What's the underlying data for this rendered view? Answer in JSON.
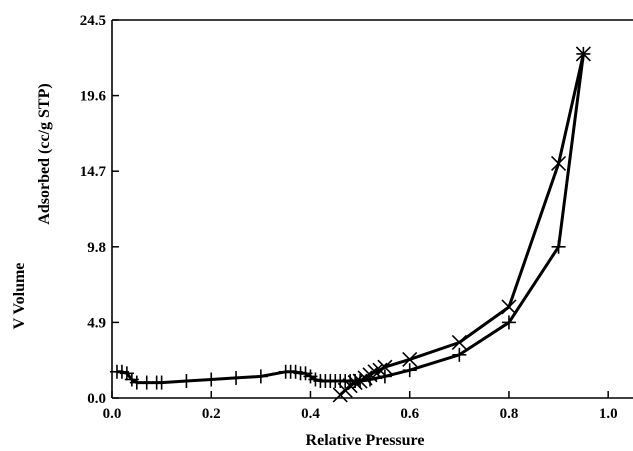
{
  "chart_data": {
    "type": "line",
    "title": "",
    "xlabel": "Relative Pressure",
    "ylabel_line1": "V Volume",
    "ylabel_line2": "Adsorbed (cc/g STP)",
    "xlim": [
      0.0,
      1.05
    ],
    "ylim": [
      0.0,
      24.5
    ],
    "x_ticks": [
      0.0,
      0.2,
      0.4,
      0.6,
      0.8,
      1.0
    ],
    "x_tick_labels": [
      "0.0",
      "0.2",
      "0.4",
      "0.6",
      "0.8",
      "1.0"
    ],
    "y_ticks": [
      0.0,
      4.9,
      9.8,
      14.7,
      19.6,
      24.5
    ],
    "y_tick_labels": [
      "0.0",
      "4.9",
      "9.8",
      "14.7",
      "19.6",
      "24.5"
    ],
    "grid": false,
    "legend": "none",
    "series": [
      {
        "marker": "plus",
        "x": [
          0.01,
          0.02,
          0.03,
          0.04,
          0.05,
          0.07,
          0.09,
          0.1,
          0.15,
          0.2,
          0.25,
          0.3,
          0.35,
          0.36,
          0.37,
          0.38,
          0.39,
          0.4,
          0.41,
          0.42,
          0.43,
          0.44,
          0.45,
          0.46,
          0.47,
          0.48,
          0.49,
          0.5,
          0.52,
          0.55,
          0.6,
          0.7,
          0.8,
          0.9,
          0.95
        ],
        "y": [
          1.7,
          1.7,
          1.6,
          1.2,
          1.0,
          1.0,
          1.0,
          1.0,
          1.1,
          1.2,
          1.3,
          1.4,
          1.7,
          1.7,
          1.7,
          1.6,
          1.6,
          1.4,
          1.2,
          1.1,
          1.1,
          1.1,
          1.1,
          1.1,
          1.1,
          1.1,
          1.1,
          1.1,
          1.2,
          1.4,
          1.8,
          2.8,
          4.9,
          9.8,
          22.3
        ]
      },
      {
        "marker": "x",
        "x": [
          0.46,
          0.47,
          0.48,
          0.49,
          0.5,
          0.51,
          0.52,
          0.53,
          0.54,
          0.55,
          0.6,
          0.7,
          0.8,
          0.9,
          0.95
        ],
        "y": [
          0.2,
          0.5,
          0.8,
          1.0,
          1.1,
          1.3,
          1.5,
          1.7,
          1.8,
          2.0,
          2.5,
          3.6,
          5.9,
          15.2,
          22.3
        ]
      }
    ]
  }
}
